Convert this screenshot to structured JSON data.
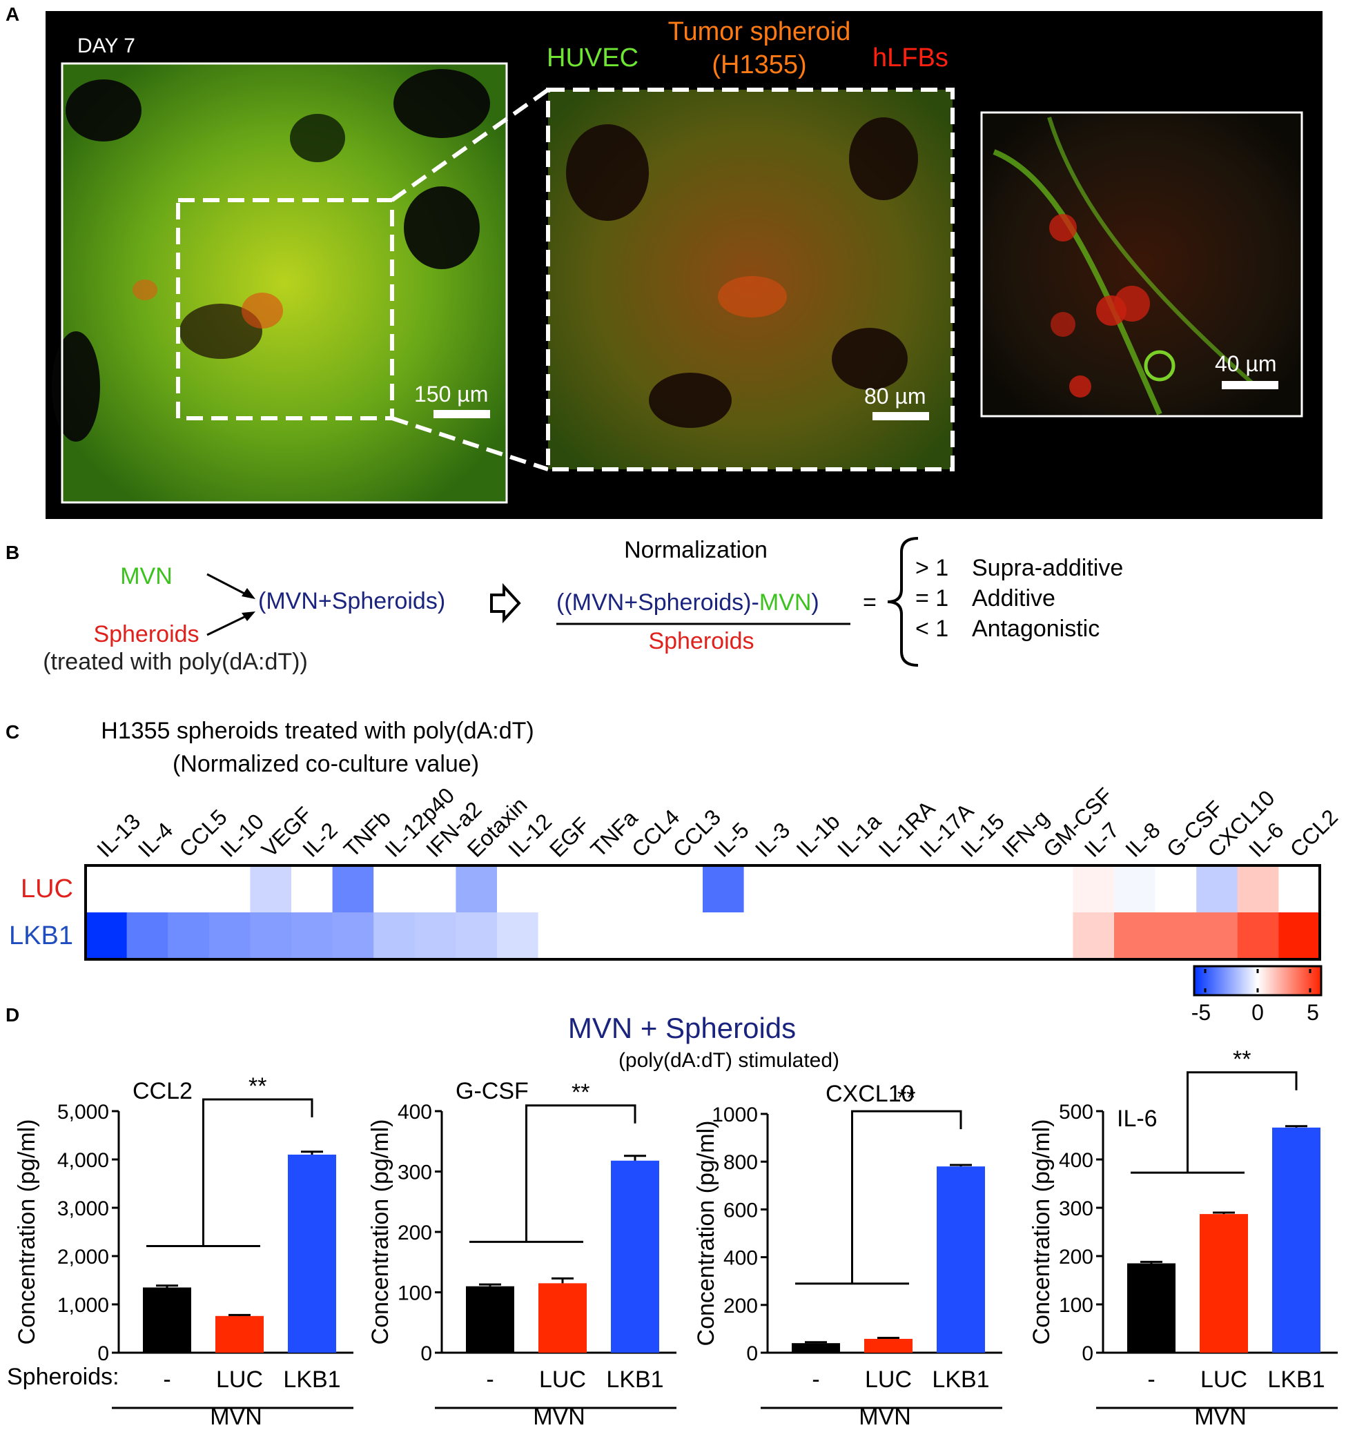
{
  "panel_labels": {
    "a": "A",
    "b": "B",
    "c": "C",
    "d": "D"
  },
  "colors": {
    "green": "#3cc21e",
    "orange": "#ff6a00",
    "red": "#e0201b",
    "navy": "#1a237e",
    "luc_bar": "#ff2a00",
    "lkb1_bar": "#1f4dff",
    "ctrl_bar": "#000000"
  },
  "panel_a": {
    "day": "DAY 7",
    "legend": {
      "huvec": "HUVEC",
      "tumor_line1": "Tumor spheroid",
      "tumor_line2": "(H1355)",
      "hlfb": "hLFBs"
    },
    "scalebars": [
      "150 µm",
      "80 µm",
      "40 µm"
    ]
  },
  "panel_b": {
    "mvn": "MVN",
    "spheroids": "Spheroids",
    "treated": "(treated with poly(dA:dT))",
    "combo_open": "(",
    "combo_mid": "MVN+Spheroids",
    "combo_close": ")",
    "normalization": "Normalization",
    "num_open": "((",
    "num_mid": "MVN+Spheroids",
    "num_close": ")-",
    "num_mvn": "MVN",
    "num_end": ")",
    "denominator": "Spheroids",
    "equals": "=",
    "outcomes": [
      {
        "cond": "> 1",
        "label": "Supra-additive"
      },
      {
        "cond": "= 1",
        "label": "Additive"
      },
      {
        "cond": "< 1",
        "label": "Antagonistic"
      }
    ]
  },
  "chart_data": [
    {
      "type": "heatmap",
      "title": "H1355 spheroids treated with poly(dA:dT)",
      "subtitle": "(Normalized co-culture value)",
      "columns": [
        "IL-13",
        "IL-4",
        "CCL5",
        "IL-10",
        "VEGF",
        "IL-2",
        "TNFb",
        "IL-12p40",
        "IFN-a2",
        "Eotaxin",
        "IL-12",
        "EGF",
        "TNFa",
        "CCL4",
        "CCL3",
        "IL-5",
        "IL-3",
        "IL-1b",
        "IL-1a",
        "IL-1RA",
        "IL-17A",
        "IL-15",
        "IFN-g",
        "GM-CSF",
        "IL-7",
        "IL-8",
        "G-CSF",
        "CXCL10",
        "IL-6",
        "CCL2"
      ],
      "rows": [
        "LUC",
        "LKB1"
      ],
      "values": [
        [
          0,
          0,
          0,
          0,
          -1,
          0,
          -3,
          0,
          0,
          -2,
          0,
          0,
          0,
          0,
          0,
          -3.5,
          0,
          0,
          0,
          0,
          0,
          0,
          0,
          0,
          0.3,
          -0.2,
          0,
          -1.2,
          1.2,
          0
        ],
        [
          -5,
          -3.2,
          -2.8,
          -2.6,
          -2.4,
          -2.3,
          -2.2,
          -1.4,
          -1.3,
          -1.2,
          -0.8,
          0,
          0,
          0,
          0,
          0,
          0,
          0,
          0,
          0,
          0,
          0,
          0,
          0,
          1,
          3,
          3,
          3,
          4,
          5
        ]
      ],
      "colorbar": {
        "min": -5,
        "max": 5,
        "ticks": [
          "-5",
          "0",
          "5"
        ]
      }
    },
    {
      "type": "bar",
      "title": "CCL2",
      "categories": [
        "-",
        "LUC",
        "LKB1"
      ],
      "values": [
        1350,
        760,
        4100
      ],
      "errors": [
        40,
        20,
        60
      ],
      "ylabel": "Concentration (pg/ml)",
      "ylim": [
        0,
        5000
      ],
      "yticks": [
        "0",
        "1,000",
        "2,000",
        "3,000",
        "4,000",
        "5,000"
      ],
      "ytick_values": [
        0,
        1000,
        2000,
        3000,
        4000,
        5000
      ],
      "significance": "**",
      "group_label": "MVN",
      "row_label": "Spheroids:"
    },
    {
      "type": "bar",
      "title": "G-CSF",
      "categories": [
        "-",
        "LUC",
        "LKB1"
      ],
      "values": [
        110,
        115,
        318
      ],
      "errors": [
        3,
        8,
        8
      ],
      "ylabel": "Concentration (pg/ml)",
      "ylim": [
        0,
        400
      ],
      "yticks": [
        "0",
        "100",
        "200",
        "300",
        "400"
      ],
      "ytick_values": [
        0,
        100,
        200,
        300,
        400
      ],
      "significance": "**",
      "group_label": "MVN"
    },
    {
      "type": "bar",
      "title": "CXCL10",
      "categories": [
        "-",
        "LUC",
        "LKB1"
      ],
      "values": [
        40,
        58,
        780
      ],
      "errors": [
        4,
        4,
        6
      ],
      "ylabel": "Concentration (pg/ml)",
      "ylim": [
        0,
        1000
      ],
      "yticks": [
        "0",
        "200",
        "400",
        "600",
        "800",
        "1000"
      ],
      "ytick_values": [
        0,
        200,
        400,
        600,
        800,
        1000
      ],
      "significance": "**",
      "group_label": "MVN"
    },
    {
      "type": "bar",
      "title": "IL-6",
      "categories": [
        "-",
        "LUC",
        "LKB1"
      ],
      "values": [
        185,
        287,
        466
      ],
      "errors": [
        3,
        3,
        3
      ],
      "ylabel": "Concentration (pg/ml)",
      "ylim": [
        0,
        500
      ],
      "yticks": [
        "0",
        "100",
        "200",
        "300",
        "400",
        "500"
      ],
      "ytick_values": [
        0,
        100,
        200,
        300,
        400,
        500
      ],
      "significance": "**",
      "group_label": "MVN"
    }
  ],
  "panel_d": {
    "title": "MVN + Spheroids",
    "subtitle": "(poly(dA:dT) stimulated)"
  }
}
